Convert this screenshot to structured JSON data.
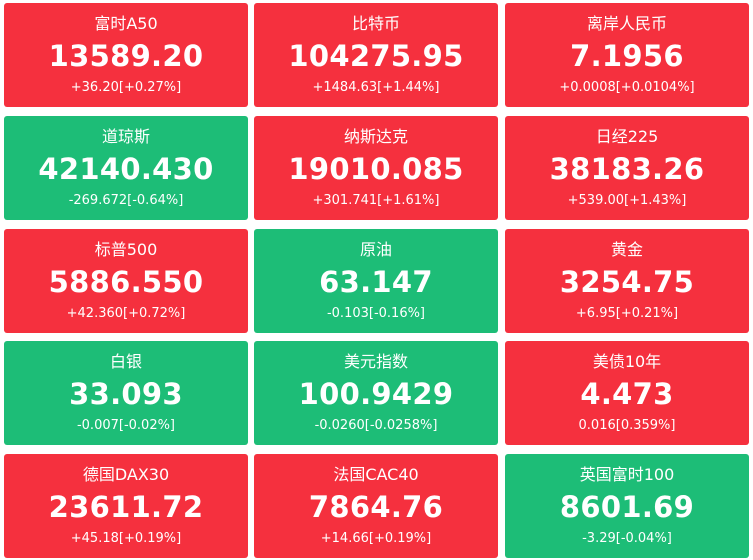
{
  "colors": {
    "up": "#f5303e",
    "down": "#1dbd77",
    "text": "#ffffff"
  },
  "tiles": [
    {
      "name": "富时A50",
      "value": "13589.20",
      "change": "+36.20[+0.27%]",
      "direction": "up"
    },
    {
      "name": "比特币",
      "value": "104275.95",
      "change": "+1484.63[+1.44%]",
      "direction": "up"
    },
    {
      "name": "离岸人民币",
      "value": "7.1956",
      "change": "+0.0008[+0.0104%]",
      "direction": "up"
    },
    {
      "name": "道琼斯",
      "value": "42140.430",
      "change": "-269.672[-0.64%]",
      "direction": "down"
    },
    {
      "name": "纳斯达克",
      "value": "19010.085",
      "change": "+301.741[+1.61%]",
      "direction": "up"
    },
    {
      "name": "日经225",
      "value": "38183.26",
      "change": "+539.00[+1.43%]",
      "direction": "up"
    },
    {
      "name": "标普500",
      "value": "5886.550",
      "change": "+42.360[+0.72%]",
      "direction": "up"
    },
    {
      "name": "原油",
      "value": "63.147",
      "change": "-0.103[-0.16%]",
      "direction": "down"
    },
    {
      "name": "黄金",
      "value": "3254.75",
      "change": "+6.95[+0.21%]",
      "direction": "up"
    },
    {
      "name": "白银",
      "value": "33.093",
      "change": "-0.007[-0.02%]",
      "direction": "down"
    },
    {
      "name": "美元指数",
      "value": "100.9429",
      "change": "-0.0260[-0.0258%]",
      "direction": "down"
    },
    {
      "name": "美债10年",
      "value": "4.473",
      "change": "0.016[0.359%]",
      "direction": "up"
    },
    {
      "name": "德国DAX30",
      "value": "23611.72",
      "change": "+45.18[+0.19%]",
      "direction": "up"
    },
    {
      "name": "法国CAC40",
      "value": "7864.76",
      "change": "+14.66[+0.19%]",
      "direction": "up"
    },
    {
      "name": "英国富时100",
      "value": "8601.69",
      "change": "-3.29[-0.04%]",
      "direction": "down"
    }
  ]
}
